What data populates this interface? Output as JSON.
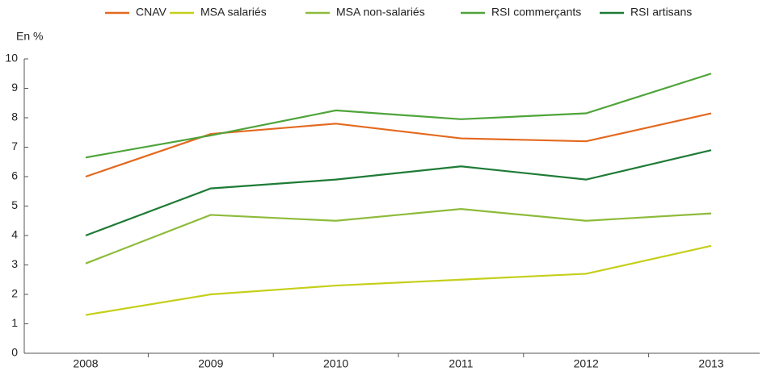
{
  "chart_data": {
    "type": "line",
    "y_label": "En %",
    "categories": [
      "2008",
      "2009",
      "2010",
      "2011",
      "2012",
      "2013"
    ],
    "series": [
      {
        "name": "CNAV",
        "color": "#e3691f",
        "values": [
          6.0,
          7.45,
          7.8,
          7.3,
          7.2,
          8.15
        ]
      },
      {
        "name": "MSA salariés",
        "color": "#c5cf1a",
        "values": [
          1.3,
          2.0,
          2.3,
          2.5,
          2.7,
          3.65
        ]
      },
      {
        "name": "MSA non-salariés",
        "color": "#8dbb3a",
        "values": [
          3.05,
          4.7,
          4.5,
          4.9,
          4.5,
          4.75
        ]
      },
      {
        "name": "RSI commerçants",
        "color": "#4ea43a",
        "values": [
          6.65,
          7.4,
          8.25,
          7.95,
          8.15,
          9.5
        ]
      },
      {
        "name": "RSI artisans",
        "color": "#1e7b36",
        "values": [
          4.0,
          5.6,
          5.9,
          6.35,
          5.9,
          6.9
        ]
      }
    ],
    "ylim": [
      0,
      10
    ],
    "yticks": [
      0,
      1,
      2,
      3,
      4,
      5,
      6,
      7,
      8,
      9,
      10
    ],
    "grid": false,
    "legend": "top"
  }
}
